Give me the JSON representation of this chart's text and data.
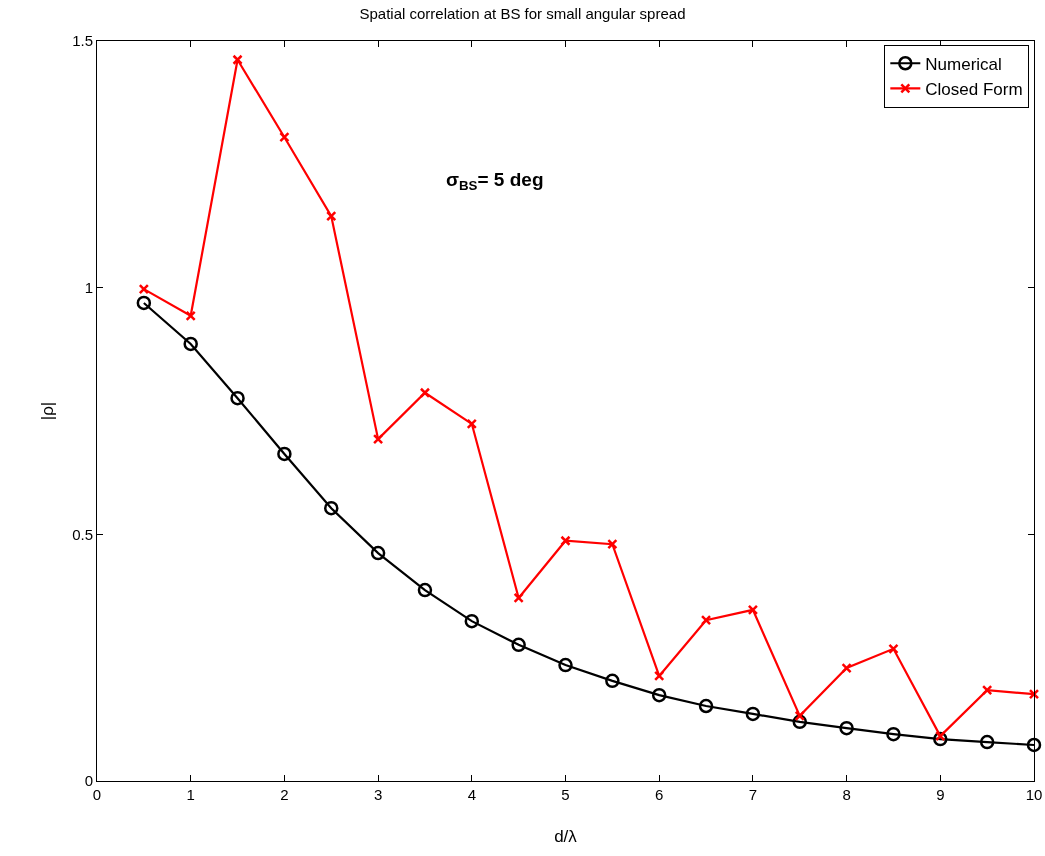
{
  "chart_data": {
    "type": "line",
    "title": "Spatial correlation at BS for small angular spread",
    "xlabel": "d/λ",
    "ylabel": "|ρ|",
    "annotations": [
      "σ$_{BS}$= 5 deg"
    ],
    "x": [
      0.5,
      1,
      1.5,
      2,
      2.5,
      3,
      3.5,
      4,
      4.5,
      5,
      5.5,
      6,
      6.5,
      7,
      7.5,
      8,
      8.5,
      9,
      9.5,
      10
    ],
    "series": [
      {
        "name": "Numerical",
        "color": "#000000",
        "marker": "circle",
        "values": [
          0.969,
          0.886,
          0.776,
          0.663,
          0.553,
          0.462,
          0.387,
          0.324,
          0.276,
          0.235,
          0.203,
          0.174,
          0.152,
          0.136,
          0.12,
          0.107,
          0.095,
          0.085,
          0.079,
          0.073
        ]
      },
      {
        "name": "Closed Form",
        "color": "#ff0000",
        "marker": "cross",
        "values": [
          0.997,
          0.943,
          1.462,
          1.305,
          1.145,
          0.693,
          0.787,
          0.724,
          0.371,
          0.487,
          0.48,
          0.213,
          0.326,
          0.347,
          0.132,
          0.229,
          0.268,
          0.091,
          0.184,
          0.176
        ]
      }
    ],
    "xlim": [
      0,
      10
    ],
    "xticks": [
      0,
      1,
      2,
      3,
      4,
      5,
      6,
      7,
      8,
      9,
      10
    ],
    "ylim": [
      0,
      1.5
    ],
    "yticks": [
      0,
      0.5,
      1,
      1.5
    ],
    "grid": false,
    "legend": "top right",
    "line_style": "solid"
  }
}
